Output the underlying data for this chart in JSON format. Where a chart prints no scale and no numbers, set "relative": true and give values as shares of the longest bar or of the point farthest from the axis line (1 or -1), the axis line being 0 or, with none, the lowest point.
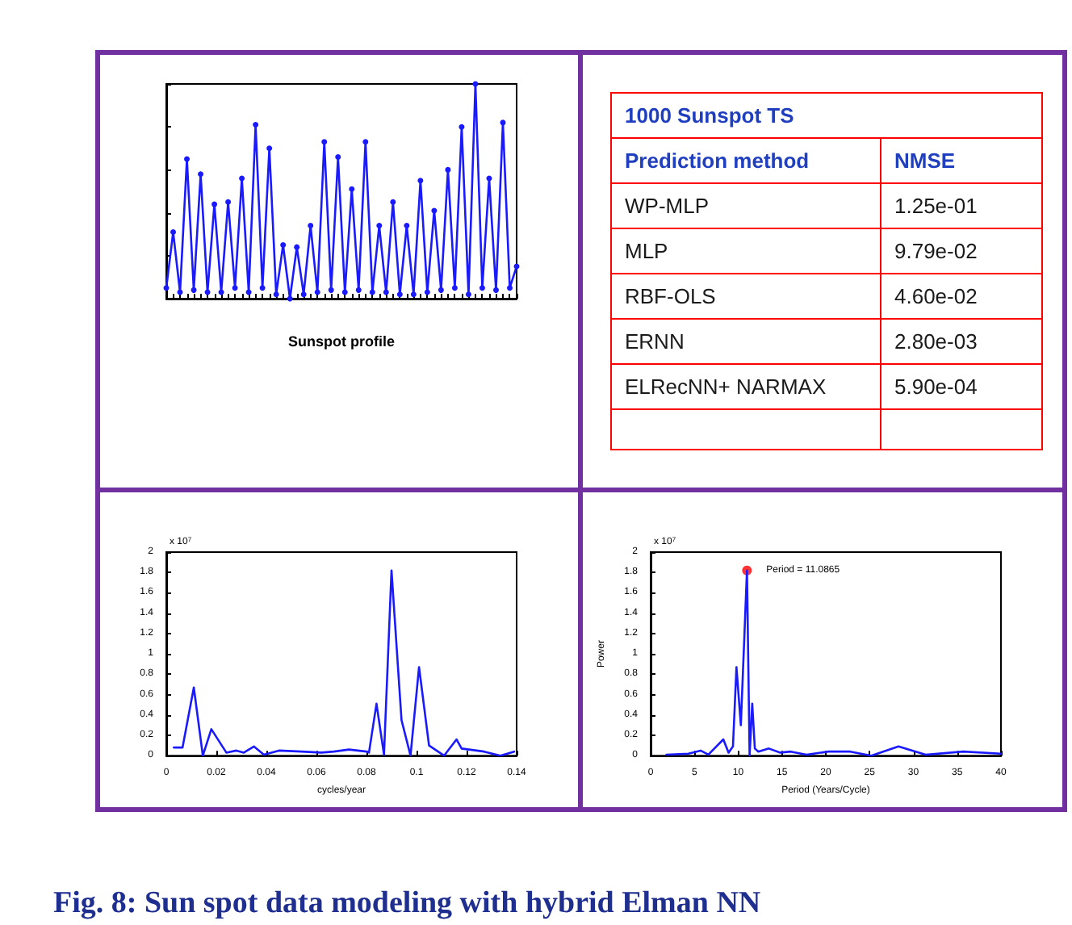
{
  "chart_data": [
    {
      "type": "line",
      "xlabel": "Sunspot profile",
      "categories": [
        null,
        null,
        null,
        null,
        null,
        null,
        null,
        null,
        null,
        null,
        null,
        null,
        null,
        null,
        null,
        null,
        null,
        null,
        null,
        null,
        null,
        null,
        null,
        null,
        null,
        null,
        null,
        null,
        null,
        null,
        null,
        null,
        null,
        null,
        null,
        null,
        null,
        null,
        null,
        null,
        null,
        null,
        null,
        null,
        null,
        null,
        null,
        null,
        null,
        null,
        null,
        null
      ],
      "relative": true,
      "marker": "circle",
      "grid": false,
      "series": [
        {
          "color": "#1a1aff",
          "values": [
            0.05,
            0.31,
            0.03,
            0.65,
            0.04,
            0.58,
            0.03,
            0.44,
            0.03,
            0.45,
            0.05,
            0.56,
            0.03,
            0.81,
            0.05,
            0.7,
            0.02,
            0.25,
            0,
            0.24,
            0.02,
            0.34,
            0.03,
            0.73,
            0.04,
            0.66,
            0.03,
            0.51,
            0.04,
            0.73,
            0.03,
            0.34,
            0.03,
            0.45,
            0.02,
            0.34,
            0.02,
            0.55,
            0.03,
            0.41,
            0.04,
            0.6,
            0.05,
            0.8,
            0.02,
            1,
            0.05,
            0.56,
            0.04,
            0.82,
            0.05,
            0.15
          ]
        }
      ]
    },
    {
      "type": "other",
      "title": "1000 Sunspot TS",
      "annotations": [
        "Fig. 8: Sun spot data modeling with hybrid Elman NN"
      ],
      "categories": [
        "Prediction method",
        "WP-MLP",
        "MLP",
        "RBF-OLS",
        "ERNN",
        "ELRecNN+ NARMAX"
      ],
      "value_labels": [
        "NMSE",
        "1.25e-01",
        "9.79e-02",
        "4.60e-02",
        "2.80e-03",
        "5.90e-04"
      ]
    },
    {
      "type": "line",
      "xlabel": "cycles/year",
      "color": "#1a1aff",
      "grid": false,
      "x": [
        0.003,
        0.0065,
        0.011,
        0.0146,
        0.018,
        0.024,
        0.028,
        0.031,
        0.035,
        0.039,
        0.045,
        0.054,
        0.062,
        0.067,
        0.073,
        0.08,
        0.081,
        0.084,
        0.087,
        0.09,
        0.094,
        0.0976,
        0.101,
        0.105,
        0.111,
        0.116,
        0.118,
        0.127,
        0.1335,
        0.139
      ],
      "values": [
        0.08,
        0.08,
        0.67,
        0,
        0.26,
        0.03,
        0.05,
        0.03,
        0.09,
        0.01,
        0.05,
        0.04,
        0.03,
        0.04,
        0.06,
        0.04,
        0.03,
        0.51,
        0.01,
        1.82,
        0.35,
        0,
        0.87,
        0.1,
        0,
        0.16,
        0.07,
        0.04,
        0,
        0.04
      ],
      "xlim": [
        0,
        0.14
      ],
      "xticks": [
        0,
        0.02,
        0.04,
        0.06,
        0.08,
        0.1,
        0.12,
        0.14
      ],
      "ylim": [
        0,
        2
      ],
      "yticks": [
        0,
        0.2,
        0.4,
        0.6,
        0.8,
        1,
        1.2,
        1.4,
        1.6,
        1.8,
        2
      ],
      "annotations": [
        "x 10$^{7}$"
      ]
    },
    {
      "type": "line",
      "xlabel": "Period (Years/Cycle)",
      "ylabel": "Power",
      "grid": false,
      "series": [
        {
          "color": "#1a1aff",
          "x": [
            1.8,
            4.3,
            5.7,
            6.6,
            8.3,
            8.9,
            9.4,
            9.8,
            10.3,
            11,
            11.3,
            11.6,
            11.9,
            12.3,
            13.5,
            14.8,
            16,
            17.8,
            20.3,
            22.8,
            25.2,
            28.3,
            31.4,
            35.7,
            40
          ],
          "values": [
            0.01,
            0.02,
            0.05,
            0.01,
            0.16,
            0.03,
            0.09,
            0.87,
            0.3,
            1.82,
            0,
            0.51,
            0.07,
            0.04,
            0.07,
            0.03,
            0.04,
            0.01,
            0.04,
            0.04,
            0,
            0.09,
            0.01,
            0.04,
            0.02
          ]
        },
        {
          "type": "scatter",
          "color": "#ff0000",
          "x": [
            11
          ],
          "values": [
            1.82
          ]
        }
      ],
      "xlim": [
        0,
        40
      ],
      "xticks": [
        0,
        5,
        10,
        15,
        20,
        25,
        30,
        35,
        40
      ],
      "ylim": [
        0,
        2
      ],
      "yticks": [
        0,
        0.2,
        0.4,
        0.6,
        0.8,
        1,
        1.2,
        1.4,
        1.6,
        1.8,
        2
      ],
      "annotations": [
        "x 10$^{7}$",
        {
          "text": "Period = 11.0865",
          "x": 11,
          "y": 1.82
        }
      ]
    }
  ]
}
